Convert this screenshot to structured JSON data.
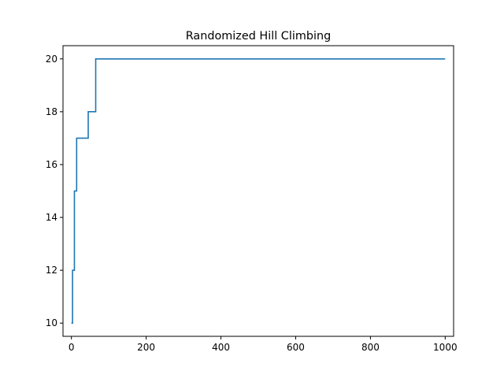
{
  "chart_data": {
    "type": "line",
    "title": "Randomized Hill Climbing",
    "xlabel": "",
    "ylabel": "",
    "xlim": [
      -22.5,
      1022.5
    ],
    "ylim": [
      9.5,
      20.5
    ],
    "xticks": [
      0,
      200,
      400,
      600,
      800,
      1000
    ],
    "xtick_labels": [
      "0",
      "200",
      "400",
      "600",
      "800",
      "1000"
    ],
    "yticks": [
      10,
      12,
      14,
      16,
      18,
      20
    ],
    "ytick_labels": [
      "10",
      "12",
      "14",
      "16",
      "18",
      "20"
    ],
    "grid": false,
    "legend": "none",
    "series": [
      {
        "color": "#1f77b4",
        "step": "post",
        "x": [
          0,
          3,
          8,
          10,
          14,
          45,
          65,
          1000
        ],
        "y": [
          10,
          12,
          15,
          15,
          17,
          18,
          20,
          20
        ]
      }
    ]
  }
}
